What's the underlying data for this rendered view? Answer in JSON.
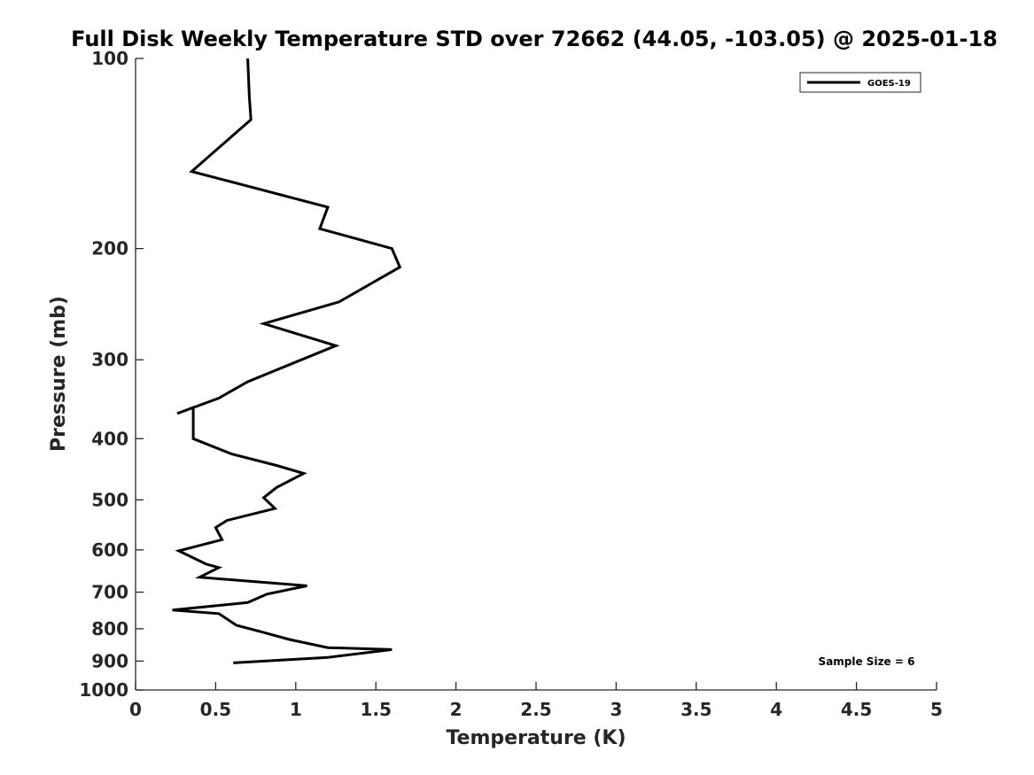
{
  "chart_data": {
    "type": "line",
    "title": "Full Disk Weekly Temperature STD over 72662 (44.05, -103.05) @ 2025-01-18",
    "xlabel": "Temperature (K)",
    "ylabel": "Pressure (mb)",
    "xlim": [
      0,
      5
    ],
    "ylim": [
      100,
      1000
    ],
    "yscale": "log",
    "y_reversed": true,
    "grid": false,
    "x_ticks": [
      0,
      0.5,
      1,
      1.5,
      2,
      2.5,
      3,
      3.5,
      4,
      4.5,
      5
    ],
    "x_tick_labels": [
      "0",
      "0.5",
      "1",
      "1.5",
      "2",
      "2.5",
      "3",
      "3.5",
      "4",
      "4.5",
      "5"
    ],
    "y_ticks": [
      100,
      200,
      300,
      400,
      500,
      600,
      700,
      800,
      900,
      1000
    ],
    "y_tick_labels": [
      "100",
      "200",
      "300",
      "400",
      "500",
      "600",
      "700",
      "800",
      "900",
      "1000"
    ],
    "legend_position": "top-right",
    "annotation": "Sample Size = 6",
    "series": [
      {
        "name": "GOES-19",
        "color": "#000000",
        "x": [
          0.7,
          0.71,
          0.72,
          0.35,
          1.2,
          1.15,
          1.6,
          1.65,
          1.27,
          0.8,
          1.25,
          0.7,
          0.52,
          0.26,
          0.36,
          0.36,
          0.6,
          0.88,
          1.05,
          0.88,
          0.8,
          0.87,
          0.57,
          0.5,
          0.54,
          0.27,
          0.44,
          0.52,
          0.4,
          1.07,
          0.82,
          0.7,
          0.23,
          0.52,
          0.63,
          0.8,
          0.96,
          1.2,
          1.6,
          1.2,
          0.61
        ],
        "y": [
          100,
          115,
          125,
          151,
          172,
          186,
          200,
          214,
          243,
          263,
          285,
          325,
          345,
          365,
          357,
          400,
          423,
          441,
          454,
          478,
          496,
          516,
          539,
          553,
          578,
          602,
          632,
          640,
          663,
          684,
          705,
          727,
          747,
          757,
          790,
          811,
          832,
          857,
          863,
          888,
          906
        ]
      }
    ]
  }
}
